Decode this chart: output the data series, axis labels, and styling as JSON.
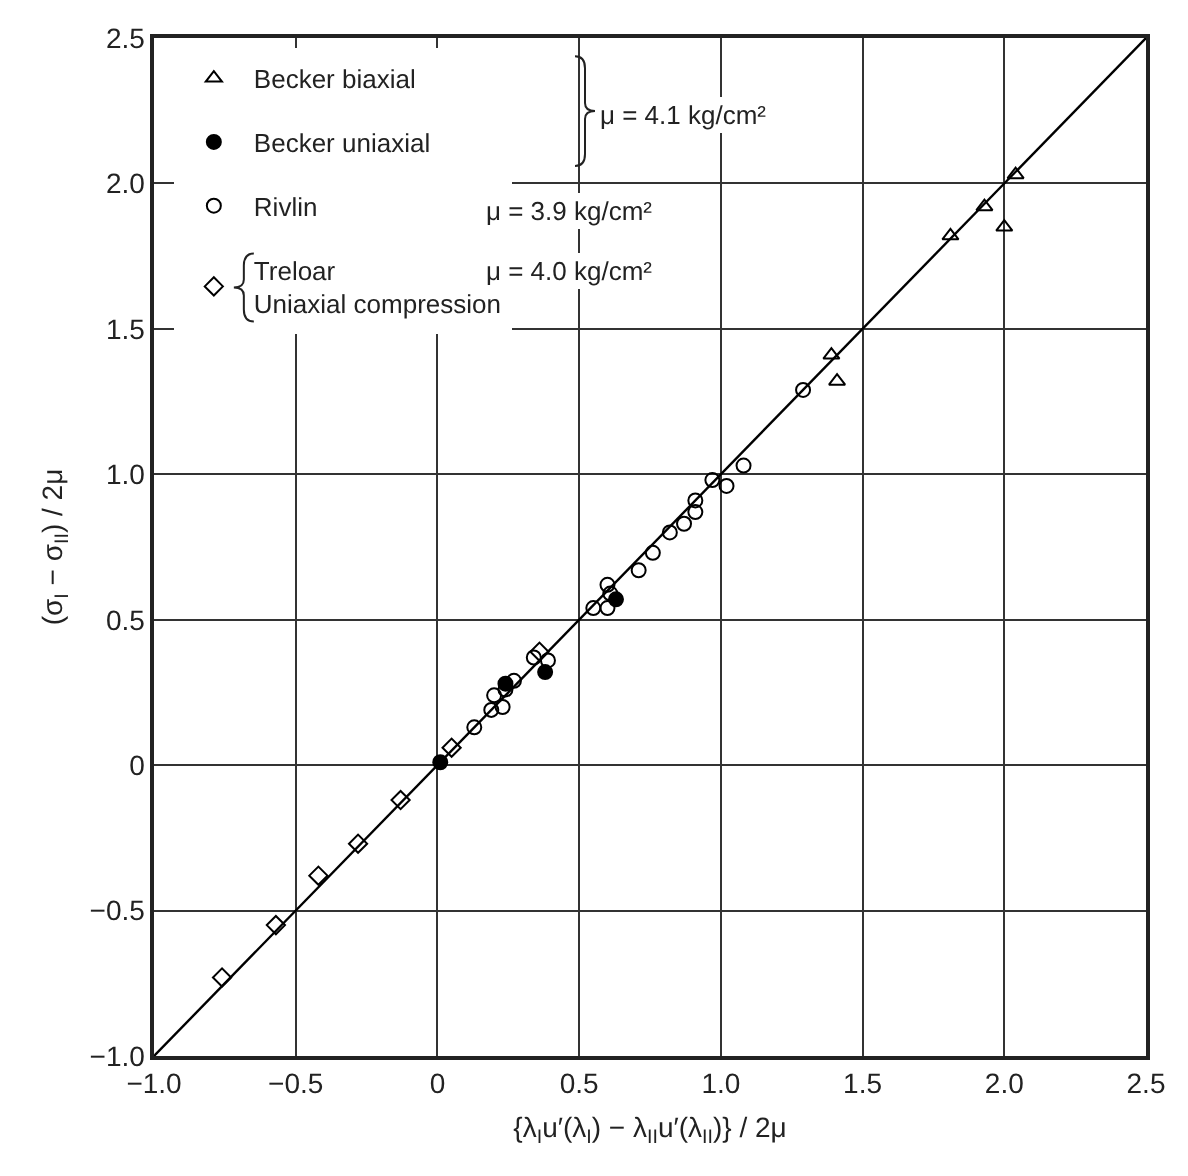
{
  "chart_data": {
    "type": "scatter",
    "xlabel": "{λ$_{I}$u′(λ$_{I}$) − λ$_{II}$u′(λ$_{II}$)} / 2μ",
    "ylabel": "(σ$_{I}$ − σ$_{II}$) / 2μ",
    "xlim": [
      -1,
      2.5
    ],
    "xticks": [
      {
        "value": -1,
        "label": "−1.0"
      },
      {
        "value": -0.5,
        "label": "−0.5"
      },
      0,
      0.5,
      {
        "value": 1,
        "label": "1.0"
      },
      1.5,
      {
        "value": 2,
        "label": "2.0"
      },
      2.5
    ],
    "ylim": [
      -1,
      2.5
    ],
    "yticks": [
      {
        "value": -1,
        "label": "−1.0"
      },
      {
        "value": -0.5,
        "label": "−0.5"
      },
      0,
      0.5,
      {
        "value": 1,
        "label": "1.0"
      },
      1.5,
      {
        "value": 2,
        "label": "2.0"
      },
      2.5
    ],
    "grid": true,
    "legend": "top left",
    "annotations": [
      "μ = 4.1 kg/cm²",
      "μ = 3.9 kg/cm²",
      "μ = 4.0 kg/cm²"
    ],
    "series": [
      {
        "name": "Becker biaxial",
        "color": "#000000",
        "marker": "triangle-open",
        "x": [
          1.39,
          1.41,
          1.81,
          1.93,
          2.0,
          2.04
        ],
        "values": [
          1.41,
          1.32,
          1.82,
          1.92,
          1.85,
          2.03
        ]
      },
      {
        "name": "Becker uniaxial",
        "color": "#000000",
        "marker": "circle",
        "x": [
          0.01,
          0.24,
          0.38,
          0.63
        ],
        "values": [
          0.01,
          0.28,
          0.32,
          0.57
        ]
      },
      {
        "name": "Rivlin",
        "color": "#000000",
        "marker": "circle-open",
        "x": [
          0.13,
          0.19,
          0.2,
          0.23,
          0.24,
          0.27,
          0.34,
          0.39,
          0.55,
          0.6,
          0.6,
          0.61,
          0.71,
          0.76,
          0.82,
          0.87,
          0.91,
          0.91,
          0.97,
          1.02,
          1.08,
          1.29
        ],
        "values": [
          0.13,
          0.19,
          0.24,
          0.2,
          0.26,
          0.29,
          0.37,
          0.36,
          0.54,
          0.54,
          0.62,
          0.59,
          0.67,
          0.73,
          0.8,
          0.83,
          0.87,
          0.91,
          0.98,
          0.96,
          1.03,
          1.29
        ]
      },
      {
        "name": "Treloar\nUniaxial compression",
        "color": "#000000",
        "marker": "diamond-open",
        "x": [
          -0.76,
          -0.57,
          -0.42,
          -0.28,
          -0.13,
          0.05,
          0.36
        ],
        "values": [
          -0.73,
          -0.55,
          -0.38,
          -0.27,
          -0.12,
          0.06,
          0.39
        ]
      },
      {
        "type": "line",
        "color": "#000000",
        "marker": "none",
        "line_style": "solid",
        "x": [
          -1,
          2.5
        ],
        "values": [
          -1,
          2.5
        ]
      }
    ]
  }
}
